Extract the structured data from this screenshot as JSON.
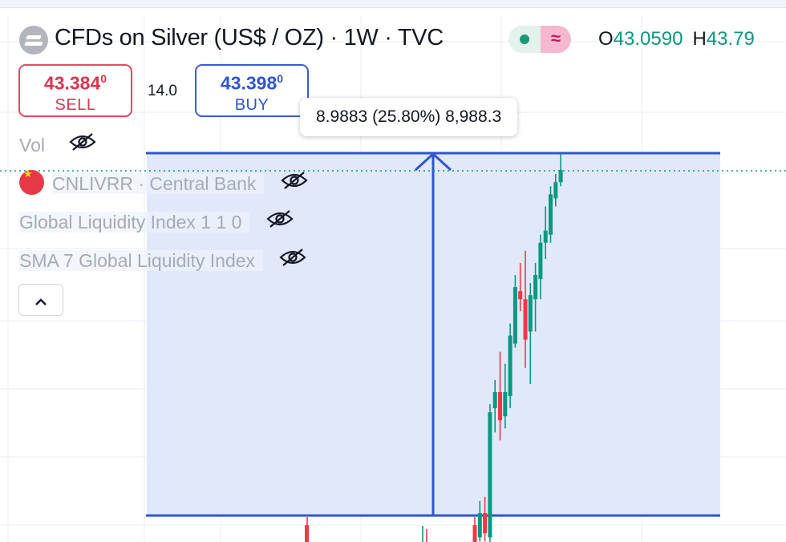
{
  "header": {
    "title": "CFDs on Silver (US$ / OZ) · 1W · TVC",
    "status_wave": "≈",
    "ohlc": {
      "o_label": "O",
      "o_value": "43.0590",
      "h_label": "H",
      "h_value": "43.79"
    }
  },
  "trade": {
    "sell": {
      "price_main": "43.384",
      "price_sup": "0",
      "label": "SELL"
    },
    "spread": "14.0",
    "buy": {
      "price_main": "43.398",
      "price_sup": "0",
      "label": "BUY"
    }
  },
  "measure": {
    "tooltip": "8.9883 (25.80%) 8,988.3"
  },
  "legend": {
    "vol": "Vol",
    "cnlivrr": "CNLIVRR · Central Bank",
    "gli": "Global Liquidity Index 1 1 0",
    "sma": "SMA 7 Global Liquidity Index",
    "collapse": "^"
  },
  "colors": {
    "up": "#089981",
    "down": "#f23645",
    "measure": "#2f55d4",
    "measure_fill": "#dde6fa"
  },
  "chart_data": {
    "type": "candlestick",
    "interval": "1W",
    "candles": [
      {
        "o": 34.6,
        "h": 34.8,
        "l": 34.0,
        "c": 34.2
      },
      {
        "o": 34.3,
        "h": 35.2,
        "l": 34.2,
        "c": 34.9
      },
      {
        "o": 34.9,
        "h": 35.3,
        "l": 34.2,
        "c": 34.4
      },
      {
        "o": 34.3,
        "h": 37.6,
        "l": 34.1,
        "c": 37.4
      },
      {
        "o": 37.5,
        "h": 38.2,
        "l": 36.9,
        "c": 37.9
      },
      {
        "o": 37.9,
        "h": 38.9,
        "l": 36.7,
        "c": 37.2
      },
      {
        "o": 37.3,
        "h": 38.6,
        "l": 37.0,
        "c": 37.9
      },
      {
        "o": 37.8,
        "h": 39.6,
        "l": 37.5,
        "c": 39.3
      },
      {
        "o": 39.1,
        "h": 40.8,
        "l": 39.0,
        "c": 40.5
      },
      {
        "o": 40.4,
        "h": 41.1,
        "l": 39.9,
        "c": 40.2
      },
      {
        "o": 40.2,
        "h": 41.4,
        "l": 38.5,
        "c": 39.2
      },
      {
        "o": 39.4,
        "h": 40.6,
        "l": 38.1,
        "c": 40.3
      },
      {
        "o": 40.2,
        "h": 41.1,
        "l": 39.4,
        "c": 40.8
      },
      {
        "o": 40.7,
        "h": 41.8,
        "l": 40.2,
        "c": 41.6
      },
      {
        "o": 41.6,
        "h": 42.5,
        "l": 41.2,
        "c": 41.9
      },
      {
        "o": 41.8,
        "h": 43.0,
        "l": 41.6,
        "c": 42.8
      },
      {
        "o": 42.7,
        "h": 43.3,
        "l": 42.5,
        "c": 43.1
      },
      {
        "o": 43.1,
        "h": 43.8,
        "l": 43.0,
        "c": 43.4
      }
    ],
    "measure": {
      "from": 34.84,
      "to": 43.82,
      "change": "8.9883",
      "percent": "25.80%",
      "ticks": "8,988.3"
    },
    "last_price": 43.4
  }
}
